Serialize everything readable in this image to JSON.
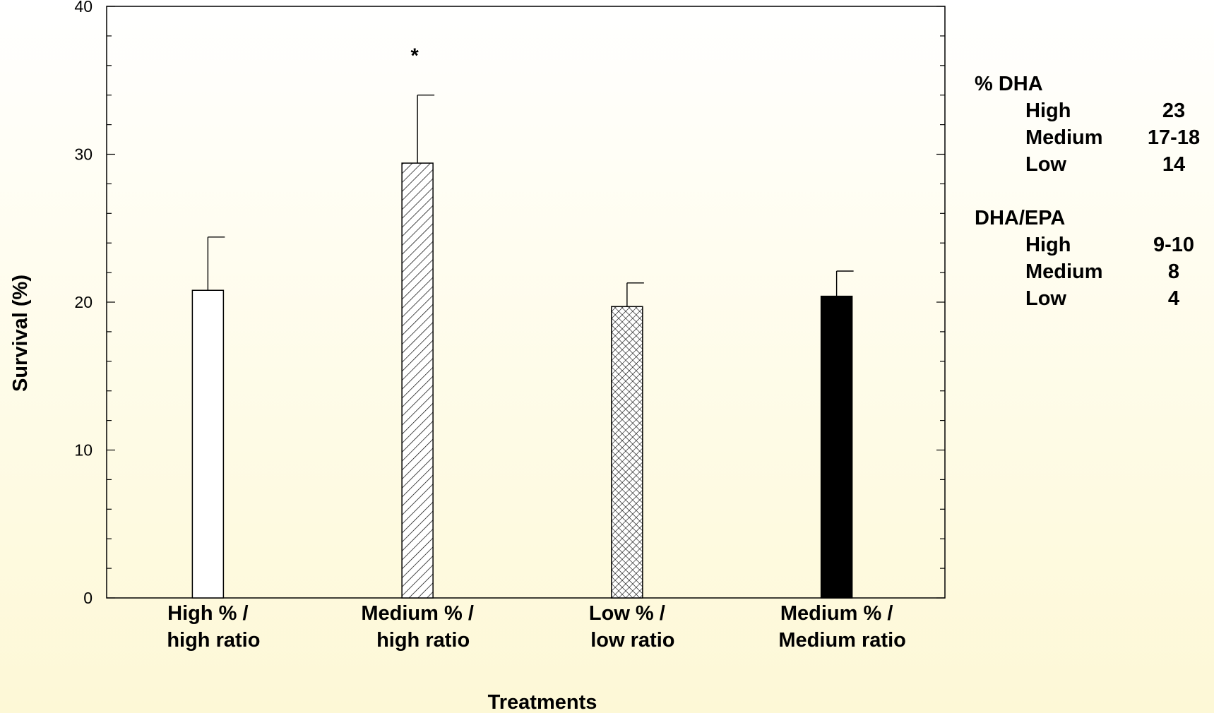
{
  "chart_data": {
    "type": "bar",
    "categories": [
      {
        "line1": "High % /",
        "line2": "high ratio"
      },
      {
        "line1": "Medium % /",
        "line2": "high ratio"
      },
      {
        "line1": "Low % /",
        "line2": "low ratio"
      },
      {
        "line1": "Medium % /",
        "line2": "Medium ratio"
      }
    ],
    "values": [
      20.8,
      29.4,
      19.7,
      20.4
    ],
    "errors": [
      3.6,
      4.6,
      1.6,
      1.7
    ],
    "annotations": [
      "",
      "*",
      "",
      ""
    ],
    "fills": [
      "white",
      "diagonal-hatch",
      "crosshatch",
      "black"
    ],
    "xlabel": "Treatments",
    "ylabel": "Survival (%)",
    "ylim": [
      0,
      40
    ],
    "yticks": [
      "0",
      "10",
      "20",
      "30",
      "40"
    ],
    "grid": false
  },
  "legend": {
    "groups": [
      {
        "heading": "% DHA",
        "rows": [
          {
            "key": "High",
            "value": "23"
          },
          {
            "key": "Medium",
            "value": "17-18"
          },
          {
            "key": "Low",
            "value": "14"
          }
        ]
      },
      {
        "heading": "DHA/EPA",
        "rows": [
          {
            "key": "High",
            "value": "9-10"
          },
          {
            "key": "Medium",
            "value": "8"
          },
          {
            "key": "Low",
            "value": "4"
          }
        ]
      }
    ]
  }
}
